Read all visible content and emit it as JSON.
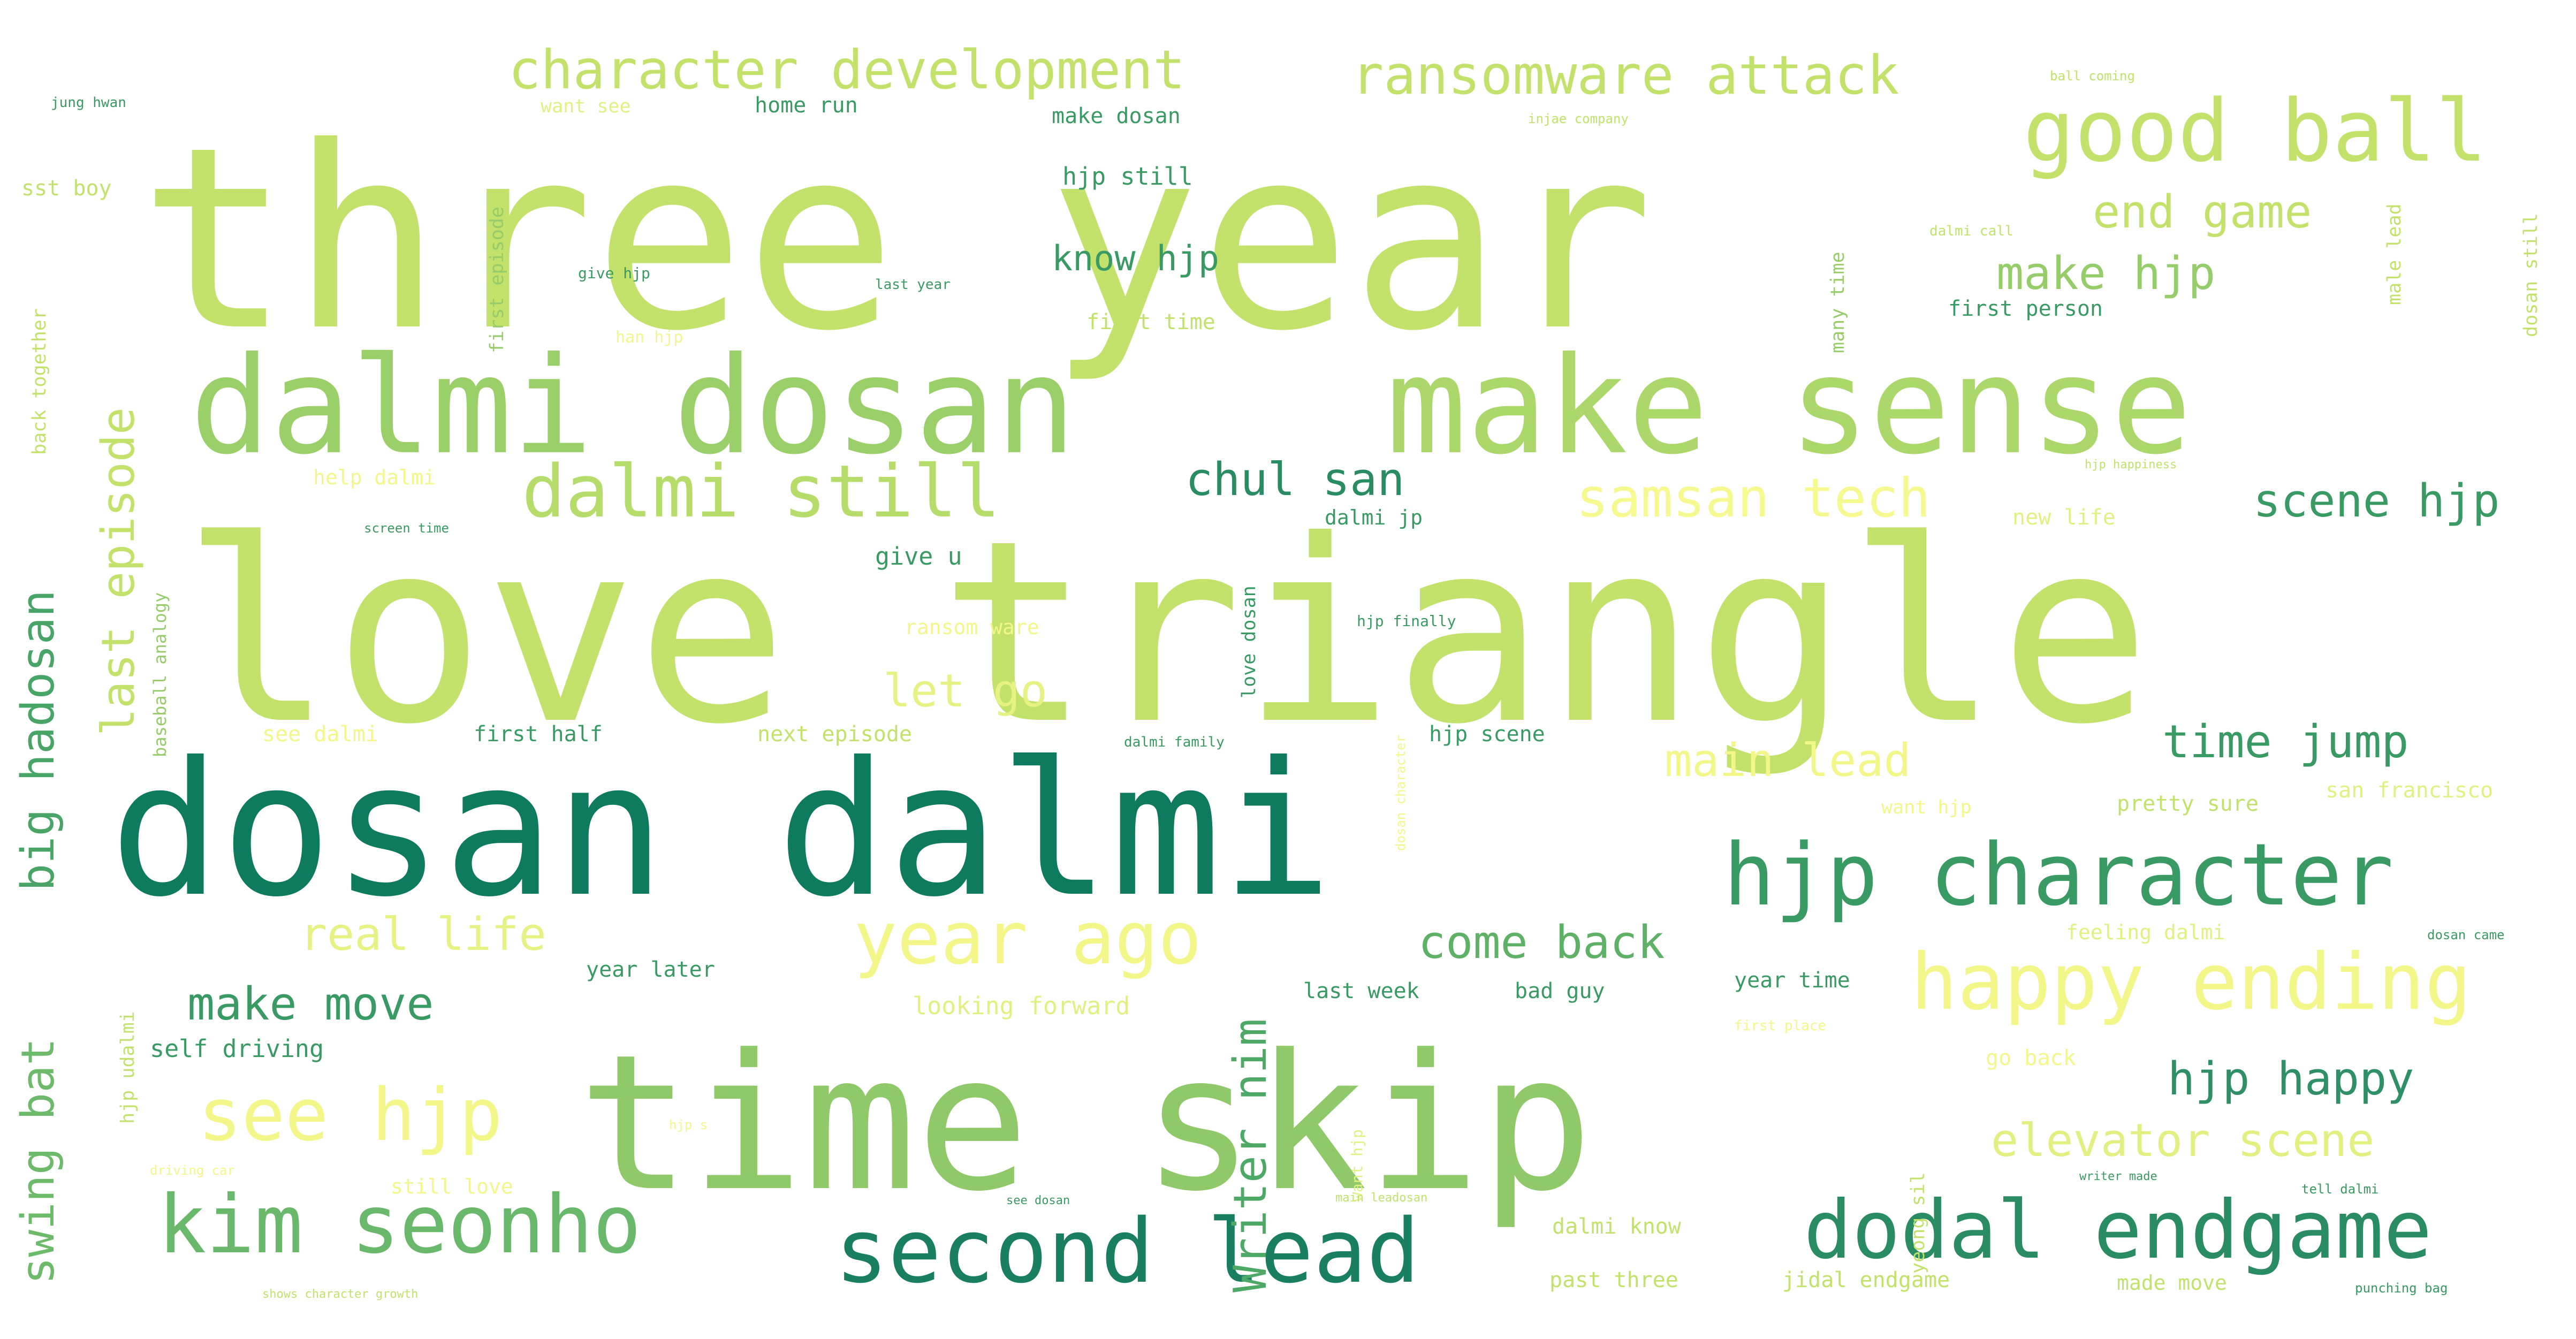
{
  "cloud": {
    "background": "#ffffff",
    "words": [
      {
        "text": "three year",
        "size": 470,
        "color": "#c2e26b"
      },
      {
        "text": "love triangle",
        "size": 470,
        "color": "#c2e26b"
      },
      {
        "text": "dosan dalmi",
        "size": 345,
        "color": "#0e7a5e"
      },
      {
        "text": "time skip",
        "size": 350,
        "color": "#8fc96a"
      },
      {
        "text": "make sense",
        "size": 250,
        "color": "#abd76b"
      },
      {
        "text": "dalmi dosan",
        "size": 250,
        "color": "#9bcf6a"
      },
      {
        "text": "hjp character",
        "size": 160,
        "color": "#3a9a64"
      },
      {
        "text": "kim seonho",
        "size": 150,
        "color": "#69b86b"
      },
      {
        "text": "dodal endgame",
        "size": 150,
        "color": "#2a8c62"
      },
      {
        "text": "second lead",
        "size": 165,
        "color": "#1a7f61"
      },
      {
        "text": "happy ending",
        "size": 145,
        "color": "#f3f78a"
      },
      {
        "text": "good ball",
        "size": 160,
        "color": "#c2e26b"
      },
      {
        "text": "dalmi still",
        "size": 135,
        "color": "#b6dc6b"
      },
      {
        "text": "year ago",
        "size": 135,
        "color": "#f3f78a"
      },
      {
        "text": "see hjp",
        "size": 135,
        "color": "#f3f78a"
      },
      {
        "text": "character development",
        "size": 100,
        "color": "#c2e26b"
      },
      {
        "text": "ransomware attack",
        "size": 100,
        "color": "#c2e26b"
      },
      {
        "text": "samsan tech",
        "size": 100,
        "color": "#f6f98f"
      },
      {
        "text": "elevator scene",
        "size": 85,
        "color": "#e2f082"
      },
      {
        "text": "hjp happy",
        "size": 85,
        "color": "#2f8f66"
      },
      {
        "text": "time jump",
        "size": 85,
        "color": "#3a9a64"
      },
      {
        "text": "main lead",
        "size": 85,
        "color": "#f3f78a"
      },
      {
        "text": "scene hjp",
        "size": 85,
        "color": "#3a9a64"
      },
      {
        "text": "end game",
        "size": 85,
        "color": "#c2e26b"
      },
      {
        "text": "make hjp",
        "size": 85,
        "color": "#96cc6a"
      },
      {
        "text": "chul san",
        "size": 85,
        "color": "#2a8c62"
      },
      {
        "text": "come back",
        "size": 85,
        "color": "#5fb168"
      },
      {
        "text": "real life",
        "size": 85,
        "color": "#e7f284"
      },
      {
        "text": "make move",
        "size": 85,
        "color": "#3a9a64"
      },
      {
        "text": "let go",
        "size": 85,
        "color": "#e7f284"
      },
      {
        "text": "last episode",
        "size": 85,
        "color": "#c2e26b"
      },
      {
        "text": "big hadosan",
        "size": 85,
        "color": "#49a567"
      },
      {
        "text": "swing bat",
        "size": 85,
        "color": "#6dbb6a"
      },
      {
        "text": "Writer nim",
        "size": 85,
        "color": "#4ea866"
      },
      {
        "text": "know hjp",
        "size": 65,
        "color": "#3a9a64"
      },
      {
        "text": "hjp still",
        "size": 45,
        "color": "#3a9a64"
      },
      {
        "text": "first time",
        "size": 40,
        "color": "#c2e26b"
      },
      {
        "text": "make dosan",
        "size": 40,
        "color": "#3a9a64"
      },
      {
        "text": "home run",
        "size": 40,
        "color": "#3a9a64"
      },
      {
        "text": "want see",
        "size": 35,
        "color": "#e2f082"
      },
      {
        "text": "first person",
        "size": 40,
        "color": "#3a9a64"
      },
      {
        "text": "sst boy",
        "size": 40,
        "color": "#c2e26b"
      },
      {
        "text": "first episode",
        "size": 35,
        "color": "#96cc6a"
      },
      {
        "text": "back together",
        "size": 35,
        "color": "#c2e26b"
      },
      {
        "text": "give hjp",
        "size": 28,
        "color": "#3a9a64"
      },
      {
        "text": "han hjp",
        "size": 30,
        "color": "#f3f78a"
      },
      {
        "text": "last year",
        "size": 26,
        "color": "#3a9a64"
      },
      {
        "text": "jung hwan",
        "size": 26,
        "color": "#3a9a64"
      },
      {
        "text": "injae company",
        "size": 24,
        "color": "#c2e26b"
      },
      {
        "text": "ball coming",
        "size": 24,
        "color": "#c2e26b"
      },
      {
        "text": "many time",
        "size": 35,
        "color": "#96cc6a"
      },
      {
        "text": "dalmi call",
        "size": 26,
        "color": "#c2e26b"
      },
      {
        "text": "male lead",
        "size": 35,
        "color": "#c2e26b"
      },
      {
        "text": "dosan still",
        "size": 35,
        "color": "#c2e26b"
      },
      {
        "text": "help dalmi",
        "size": 38,
        "color": "#f3f78a"
      },
      {
        "text": "screen time",
        "size": 24,
        "color": "#3a9a64"
      },
      {
        "text": "give u",
        "size": 45,
        "color": "#3a9a64"
      },
      {
        "text": "dalmi jp",
        "size": 38,
        "color": "#3a9a64"
      },
      {
        "text": "love dosan",
        "size": 35,
        "color": "#3a9a64"
      },
      {
        "text": "hjp happiness",
        "size": 22,
        "color": "#c2e26b"
      },
      {
        "text": "new life",
        "size": 40,
        "color": "#e2f082"
      },
      {
        "text": "ransom ware",
        "size": 38,
        "color": "#f3f78a"
      },
      {
        "text": "hjp finally",
        "size": 28,
        "color": "#3a9a64"
      },
      {
        "text": "baseball analogy",
        "size": 32,
        "color": "#96cc6a"
      },
      {
        "text": "see dalmi",
        "size": 40,
        "color": "#f3f78a"
      },
      {
        "text": "first half",
        "size": 40,
        "color": "#3a9a64"
      },
      {
        "text": "next episode",
        "size": 40,
        "color": "#c2e26b"
      },
      {
        "text": "dalmi family",
        "size": 26,
        "color": "#3a9a64"
      },
      {
        "text": "hjp scene",
        "size": 40,
        "color": "#3a9a64"
      },
      {
        "text": "dosan character",
        "size": 24,
        "color": "#f3f78a"
      },
      {
        "text": "pretty sure",
        "size": 40,
        "color": "#c2e26b"
      },
      {
        "text": "want hjp",
        "size": 35,
        "color": "#f3f78a"
      },
      {
        "text": "san francisco",
        "size": 40,
        "color": "#e2f082"
      },
      {
        "text": "year later",
        "size": 40,
        "color": "#3a9a64"
      },
      {
        "text": "looking forward",
        "size": 45,
        "color": "#e2f082"
      },
      {
        "text": "last week",
        "size": 40,
        "color": "#3a9a64"
      },
      {
        "text": "bad guy",
        "size": 40,
        "color": "#3a9a64"
      },
      {
        "text": "year time",
        "size": 40,
        "color": "#3a9a64"
      },
      {
        "text": "first place",
        "size": 26,
        "color": "#f3f78a"
      },
      {
        "text": "feeling dalmi",
        "size": 38,
        "color": "#e2f082"
      },
      {
        "text": "dosan came",
        "size": 24,
        "color": "#3a9a64"
      },
      {
        "text": "go back",
        "size": 40,
        "color": "#f3f78a"
      },
      {
        "text": "self driving",
        "size": 45,
        "color": "#3a9a64"
      },
      {
        "text": "hjp udalmi",
        "size": 35,
        "color": "#c2e26b"
      },
      {
        "text": "driving car",
        "size": 24,
        "color": "#f3f78a"
      },
      {
        "text": "hjp s",
        "size": 24,
        "color": "#f3f78a"
      },
      {
        "text": "want hjp",
        "size": 28,
        "color": "#e2f082"
      },
      {
        "text": "yeong sil",
        "size": 35,
        "color": "#c2e26b"
      },
      {
        "text": "writer made",
        "size": 22,
        "color": "#3a9a64"
      },
      {
        "text": "tell dalmi",
        "size": 24,
        "color": "#3a9a64"
      },
      {
        "text": "still love",
        "size": 38,
        "color": "#f3f78a"
      },
      {
        "text": "see dosan",
        "size": 22,
        "color": "#3a9a64"
      },
      {
        "text": "main leadosan",
        "size": 22,
        "color": "#c2e26b"
      },
      {
        "text": "dalmi know",
        "size": 40,
        "color": "#c2e26b"
      },
      {
        "text": "jidal endgame",
        "size": 40,
        "color": "#c2e26b"
      },
      {
        "text": "past three",
        "size": 40,
        "color": "#c2e26b"
      },
      {
        "text": "made move",
        "size": 38,
        "color": "#c2e26b"
      },
      {
        "text": "punching bag",
        "size": 24,
        "color": "#3a9a64"
      },
      {
        "text": "shows character growth",
        "size": 22,
        "color": "#c2e26b"
      }
    ]
  }
}
